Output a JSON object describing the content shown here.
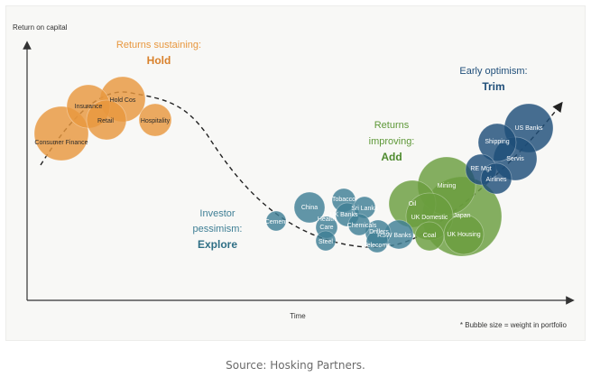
{
  "caption": "Source: Hosking Partners.",
  "chart_data": {
    "type": "scatter",
    "ylabel": "Return on capital",
    "xlabel": "Time",
    "footnote": "* Bubble size = weight in portfolio",
    "colors": {
      "hold": "#e8973e",
      "explore": "#3f7f95",
      "add": "#6a9e3e",
      "trim": "#1f4e79"
    },
    "phases": [
      {
        "id": "hold",
        "line1": "Returns sustaining:",
        "line2": "Hold"
      },
      {
        "id": "explore",
        "line1": "Investor",
        "line1b": "pessimism:",
        "line2": "Explore"
      },
      {
        "id": "add",
        "line1": "Returns",
        "line1b": "improving:",
        "line2": "Add"
      },
      {
        "id": "trim",
        "line1": "Early optimism:",
        "line2": "Trim"
      }
    ],
    "bubbles": [
      {
        "label": "Consumer Finance",
        "phase": "hold"
      },
      {
        "label": "Insurance",
        "phase": "hold"
      },
      {
        "label": "Hold Cos",
        "phase": "hold"
      },
      {
        "label": "Retail",
        "phase": "hold"
      },
      {
        "label": "Hospitality",
        "phase": "hold"
      },
      {
        "label": "Cement",
        "phase": "explore"
      },
      {
        "label": "China",
        "phase": "explore"
      },
      {
        "label": "Tobacco",
        "phase": "explore"
      },
      {
        "label": "Sri Lanka",
        "phase": "explore"
      },
      {
        "label": "UK Banks",
        "phase": "explore"
      },
      {
        "label": "Health Care",
        "phase": "explore"
      },
      {
        "label": "Chemicals",
        "phase": "explore"
      },
      {
        "label": "Drillers",
        "phase": "explore"
      },
      {
        "label": "Steel",
        "phase": "explore"
      },
      {
        "label": "Telecoms",
        "phase": "explore"
      },
      {
        "label": "RSW Banks",
        "phase": "explore"
      },
      {
        "label": "Oil",
        "phase": "add"
      },
      {
        "label": "Mining",
        "phase": "add"
      },
      {
        "label": "UK Domestic",
        "phase": "add"
      },
      {
        "label": "Japan",
        "phase": "add"
      },
      {
        "label": "Coal",
        "phase": "add"
      },
      {
        "label": "UK Housing",
        "phase": "add"
      },
      {
        "label": "Shipping",
        "phase": "trim"
      },
      {
        "label": "US Banks",
        "phase": "trim"
      },
      {
        "label": "Servis",
        "phase": "trim"
      },
      {
        "label": "RE Mgt",
        "phase": "trim"
      },
      {
        "label": "Airlines",
        "phase": "trim"
      }
    ]
  }
}
